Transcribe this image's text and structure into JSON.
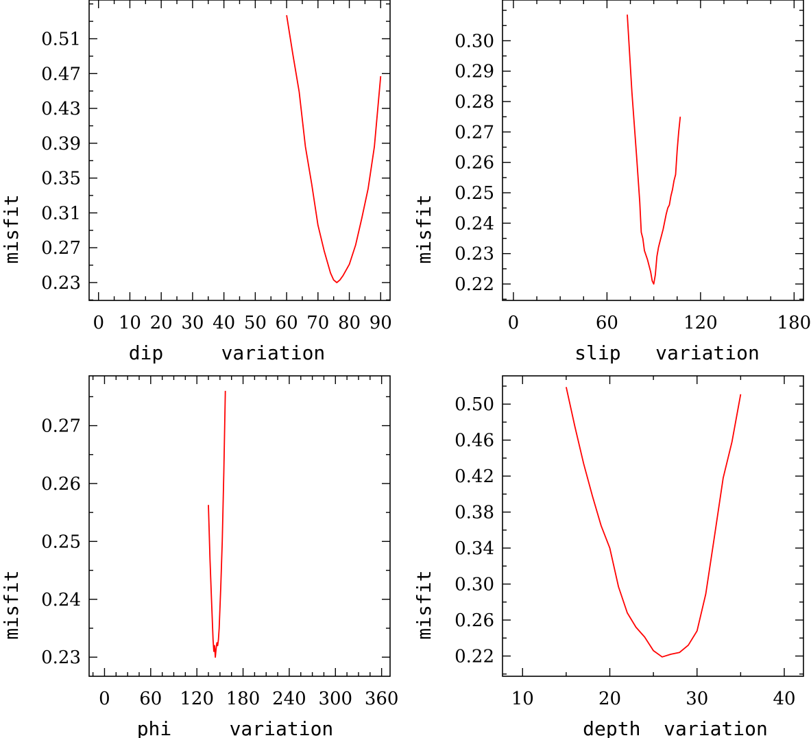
{
  "chart_data": [
    {
      "type": "line",
      "xlabel": "dip     variation",
      "ylabel": "misfit",
      "xlim": [
        -3,
        93
      ],
      "ylim": [
        0.2095,
        0.5545
      ],
      "xticks": [
        0,
        10,
        20,
        30,
        40,
        50,
        60,
        70,
        80,
        90
      ],
      "xticklabels": [
        "0",
        "10",
        "20",
        "30",
        "40",
        "50",
        "60",
        "70",
        "80",
        "90"
      ],
      "yticks": [
        0.23,
        0.27,
        0.31,
        0.35,
        0.39,
        0.43,
        0.47,
        0.51
      ],
      "yticklabels": [
        "0.23",
        "0.27",
        "0.31",
        "0.35",
        "0.39",
        "0.43",
        "0.47",
        "0.51"
      ],
      "series": [
        {
          "name": "misfit",
          "color": "#ff0000",
          "x": [
            60,
            62,
            64,
            66,
            68,
            70,
            72,
            74,
            75,
            76,
            77,
            78,
            80,
            82,
            84,
            86,
            88,
            90
          ],
          "y": [
            0.537,
            0.492,
            0.449,
            0.386,
            0.343,
            0.296,
            0.266,
            0.241,
            0.233,
            0.23,
            0.233,
            0.238,
            0.251,
            0.273,
            0.304,
            0.338,
            0.386,
            0.467
          ]
        }
      ]
    },
    {
      "type": "line",
      "xlabel": "slip   variation",
      "ylabel": "misfit",
      "xlim": [
        -7,
        186
      ],
      "ylim": [
        0.2146,
        0.3134
      ],
      "xticks": [
        0,
        60,
        120,
        180
      ],
      "xticklabels": [
        "0",
        "60",
        "120",
        "180"
      ],
      "yticks": [
        0.22,
        0.23,
        0.24,
        0.25,
        0.26,
        0.27,
        0.28,
        0.29,
        0.3
      ],
      "yticklabels": [
        "0.22",
        "0.23",
        "0.24",
        "0.25",
        "0.26",
        "0.27",
        "0.28",
        "0.29",
        "0.30"
      ],
      "series": [
        {
          "name": "misfit",
          "color": "#ff0000",
          "x": [
            73,
            76,
            79,
            81,
            82,
            83,
            84,
            86,
            88,
            89,
            90,
            91,
            92,
            93,
            94,
            96,
            98,
            99,
            100,
            101,
            102,
            103,
            104,
            105,
            106,
            107
          ],
          "y": [
            0.3086,
            0.283,
            0.262,
            0.247,
            0.237,
            0.235,
            0.231,
            0.228,
            0.224,
            0.221,
            0.22,
            0.223,
            0.229,
            0.232,
            0.234,
            0.238,
            0.243,
            0.245,
            0.246,
            0.249,
            0.251,
            0.254,
            0.256,
            0.264,
            0.27,
            0.275
          ]
        }
      ]
    },
    {
      "type": "line",
      "xlabel": "phi     variation",
      "ylabel": "misfit",
      "xlim": [
        -20,
        371
      ],
      "ylim": [
        0.2267,
        0.2786
      ],
      "xticks": [
        0,
        60,
        120,
        180,
        240,
        300,
        360
      ],
      "xticklabels": [
        "0",
        "60",
        "120",
        "180",
        "240",
        "300",
        "360"
      ],
      "yticks": [
        0.23,
        0.24,
        0.25,
        0.26,
        0.27
      ],
      "yticklabels": [
        "0.23",
        "0.24",
        "0.25",
        "0.26",
        "0.27"
      ],
      "series": [
        {
          "name": "misfit",
          "color": "#ff0000",
          "x": [
            135,
            137,
            139,
            141,
            142,
            143,
            144,
            145,
            146,
            147,
            148,
            149,
            151,
            153,
            155,
            157
          ],
          "y": [
            0.2563,
            0.247,
            0.24,
            0.233,
            0.231,
            0.232,
            0.23,
            0.2315,
            0.2325,
            0.232,
            0.233,
            0.235,
            0.242,
            0.25,
            0.262,
            0.276
          ]
        }
      ]
    },
    {
      "type": "line",
      "xlabel": "depth  variation",
      "ylabel": "misfit",
      "xlim": [
        7.7,
        42.2
      ],
      "ylim": [
        0.1975,
        0.5314
      ],
      "xticks": [
        10,
        20,
        30,
        40
      ],
      "xticklabels": [
        "10",
        "20",
        "30",
        "40"
      ],
      "yticks": [
        0.22,
        0.26,
        0.3,
        0.34,
        0.38,
        0.42,
        0.46,
        0.5
      ],
      "yticklabels": [
        "0.22",
        "0.26",
        "0.30",
        "0.34",
        "0.38",
        "0.42",
        "0.46",
        "0.50"
      ],
      "series": [
        {
          "name": "misfit",
          "color": "#ff0000",
          "x": [
            15,
            16,
            17,
            18,
            19,
            20,
            21,
            22,
            23,
            24,
            25,
            26,
            27,
            28,
            29,
            30,
            31,
            32,
            33,
            34,
            35
          ],
          "y": [
            0.519,
            0.475,
            0.434,
            0.398,
            0.365,
            0.34,
            0.297,
            0.268,
            0.252,
            0.241,
            0.226,
            0.219,
            0.222,
            0.224,
            0.232,
            0.248,
            0.289,
            0.353,
            0.418,
            0.458,
            0.511
          ]
        }
      ]
    }
  ]
}
